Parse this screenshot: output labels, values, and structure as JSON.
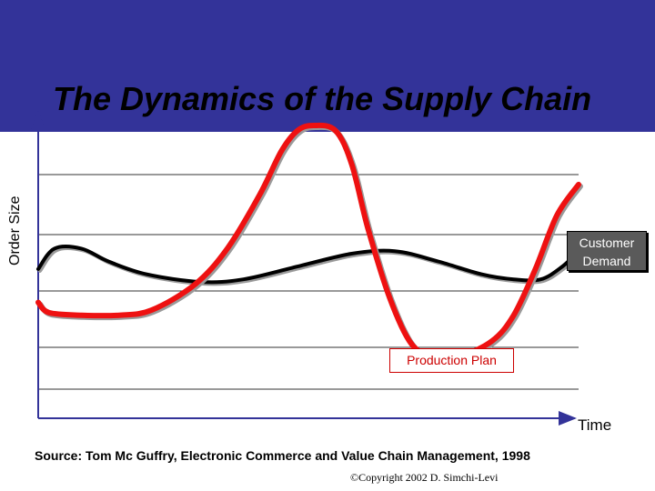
{
  "slide": {
    "title": "The Dynamics of the Supply Chain",
    "source": "Source: Tom Mc Guffry, Electronic Commerce and Value Chain Management, 1998",
    "copyright": "©Copyright 2002 D. Simchi-Levi"
  },
  "colors": {
    "header": "#333399",
    "production_plan": "#ee1111",
    "customer_demand": "#000000"
  },
  "chart_data": {
    "type": "line",
    "xlabel": "Time",
    "ylabel": "Order Size",
    "grid": true,
    "series": [
      {
        "name": "Customer Demand",
        "points": [
          [
            0,
            0.44
          ],
          [
            0.03,
            0.52
          ],
          [
            0.08,
            0.52
          ],
          [
            0.13,
            0.47
          ],
          [
            0.2,
            0.42
          ],
          [
            0.3,
            0.39
          ],
          [
            0.38,
            0.4
          ],
          [
            0.48,
            0.45
          ],
          [
            0.58,
            0.5
          ],
          [
            0.66,
            0.51
          ],
          [
            0.74,
            0.47
          ],
          [
            0.82,
            0.42
          ],
          [
            0.88,
            0.4
          ],
          [
            0.93,
            0.4
          ],
          [
            0.97,
            0.45
          ],
          [
            1.0,
            0.51
          ]
        ]
      },
      {
        "name": "Production Plan",
        "points": [
          [
            0,
            0.31
          ],
          [
            0.02,
            0.27
          ],
          [
            0.08,
            0.26
          ],
          [
            0.15,
            0.26
          ],
          [
            0.21,
            0.28
          ],
          [
            0.29,
            0.38
          ],
          [
            0.35,
            0.52
          ],
          [
            0.41,
            0.73
          ],
          [
            0.45,
            0.9
          ],
          [
            0.48,
            0.98
          ],
          [
            0.51,
            1.0
          ],
          [
            0.55,
            0.98
          ],
          [
            0.58,
            0.85
          ],
          [
            0.61,
            0.6
          ],
          [
            0.65,
            0.33
          ],
          [
            0.69,
            0.15
          ],
          [
            0.73,
            0.1
          ],
          [
            0.78,
            0.1
          ],
          [
            0.84,
            0.16
          ],
          [
            0.88,
            0.26
          ],
          [
            0.92,
            0.44
          ],
          [
            0.96,
            0.65
          ],
          [
            1.0,
            0.77
          ]
        ]
      }
    ]
  }
}
